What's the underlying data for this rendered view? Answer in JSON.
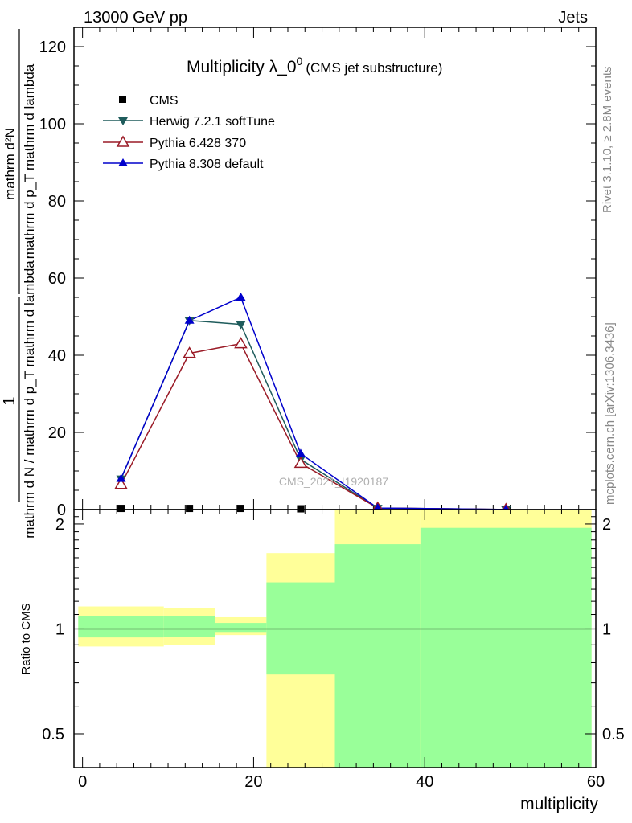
{
  "header": {
    "energy": "13000 GeV pp",
    "category": "Jets"
  },
  "title": {
    "main": "Multiplicity λ_0",
    "superscript": "0",
    "sub": "(CMS jet substructure)"
  },
  "side_labels": {
    "rivet": "Rivet 3.1.10, ≥ 2.8M events",
    "mcplots": "mcplots.cern.ch [arXiv:1306.3436]"
  },
  "watermark": "CMS_2021_I1920187",
  "ylabel": {
    "frac_num": "1",
    "frac_den": "mathrm d N / mathrm d p_T mathrm d lambda",
    "deriv_num": "mathrm d²N",
    "deriv_den": "mathrm d p_T mathrm d lambda"
  },
  "ratio_ylabel": "Ratio to CMS",
  "xlabel": "multiplicity",
  "colors": {
    "herwig": "#1f5c5c",
    "pythia6": "#9a1a26",
    "pythia8": "#0000cc",
    "band_green": "#99ff99",
    "band_yellow": "#ffff99"
  },
  "chart_data": [
    {
      "type": "line",
      "panel": "main",
      "title": "Multiplicity λ_0^0 (CMS jet substructure)",
      "xlim": [
        -1,
        60
      ],
      "ylim": [
        0,
        125
      ],
      "x_ticks": [
        0,
        20,
        40,
        60
      ],
      "y_ticks": [
        20,
        40,
        60,
        80,
        100,
        120
      ],
      "y_tick_labels": [
        "20",
        "40",
        "60",
        "80",
        "100",
        "120"
      ],
      "legend_position": "top-left",
      "series": [
        {
          "name": "CMS",
          "marker": "square",
          "color": "#000000",
          "x": [
            4.5,
            12.5,
            18.5,
            25.5,
            34.5,
            49.5
          ],
          "y": [
            0.3,
            0.3,
            0.3,
            0.2,
            0.05,
            0.02
          ]
        },
        {
          "name": "Herwig 7.2.1 softTune",
          "marker": "triangle-down",
          "color": "#1f5c5c",
          "x": [
            4.5,
            12.5,
            18.5,
            25.5,
            34.5,
            49.5
          ],
          "y": [
            8.0,
            49.0,
            48.0,
            13.0,
            0.4,
            0.02
          ]
        },
        {
          "name": "Pythia 6.428 370",
          "marker": "triangle-open",
          "color": "#9a1a26",
          "x": [
            4.5,
            12.5,
            18.5,
            25.5,
            34.5,
            49.5
          ],
          "y": [
            6.5,
            40.5,
            43.0,
            12.0,
            0.4,
            0.02
          ]
        },
        {
          "name": "Pythia 8.308 default",
          "marker": "triangle-up",
          "color": "#0000cc",
          "x": [
            4.5,
            12.5,
            18.5,
            25.5,
            34.5,
            49.5
          ],
          "y": [
            8.0,
            49.0,
            55.0,
            14.5,
            0.4,
            0.02
          ]
        }
      ]
    },
    {
      "type": "area",
      "panel": "ratio",
      "ylabel": "Ratio to CMS",
      "xlabel": "multiplicity",
      "xlim": [
        -1,
        60
      ],
      "ylim": [
        0.4,
        2.2
      ],
      "y_scale": "log",
      "x_ticks": [
        0,
        20,
        40,
        60
      ],
      "y_ticks": [
        0.5,
        1,
        2
      ],
      "y_tick_labels": [
        "0.5",
        "1",
        "2"
      ],
      "reference_line": 1,
      "bins": [
        {
          "x_low": -0.5,
          "x_high": 9.5,
          "yellow": [
            0.89,
            1.16
          ],
          "green": [
            0.945,
            1.09
          ]
        },
        {
          "x_low": 9.5,
          "x_high": 15.5,
          "yellow": [
            0.9,
            1.15
          ],
          "green": [
            0.95,
            1.09
          ]
        },
        {
          "x_low": 15.5,
          "x_high": 21.5,
          "yellow": [
            0.96,
            1.08
          ],
          "green": [
            0.98,
            1.04
          ]
        },
        {
          "x_low": 21.5,
          "x_high": 29.5,
          "yellow": [
            0.4,
            1.65
          ],
          "green": [
            0.74,
            1.36
          ]
        },
        {
          "x_low": 29.5,
          "x_high": 39.5,
          "yellow": [
            0.4,
            2.2
          ],
          "green": [
            0.4,
            1.75
          ]
        },
        {
          "x_low": 39.5,
          "x_high": 59.5,
          "yellow": [
            0.4,
            2.2
          ],
          "green": [
            0.4,
            1.95
          ]
        }
      ]
    }
  ]
}
